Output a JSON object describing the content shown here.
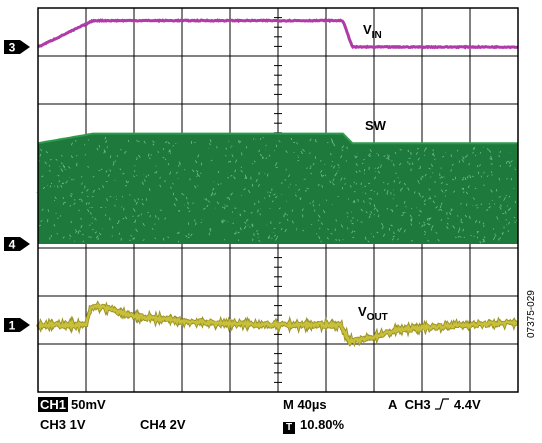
{
  "chart_data": {
    "type": "line",
    "title": "",
    "grid": true,
    "divisions": {
      "x": 10,
      "y": 8
    },
    "series": [
      {
        "name": "VIN",
        "label_main": "V",
        "label_sub": "IN",
        "channel": "3",
        "color": "#b03aa8",
        "unit": "div",
        "x_div": [
          0,
          1.15,
          6.35,
          6.55,
          10
        ],
        "y_div": [
          0,
          0.55,
          0.55,
          0,
          0
        ]
      },
      {
        "name": "SW",
        "channel": "4",
        "color": "#1e7a3c",
        "band_bottom_div": 0,
        "x_div": [
          0,
          1.15,
          6.35,
          6.55,
          10
        ],
        "band_top_div": [
          2.1,
          2.3,
          2.3,
          2.1,
          2.1
        ]
      },
      {
        "name": "VOUT",
        "label_main": "V",
        "label_sub": "OUT",
        "channel": "1",
        "color": "#c9c03a",
        "x_div": [
          0,
          1.0,
          1.1,
          1.25,
          2.0,
          3.0,
          4.0,
          5.0,
          6.3,
          6.5,
          6.8,
          7.5,
          8.5,
          10
        ],
        "y_div": [
          0,
          0,
          0.35,
          0.4,
          0.18,
          0.08,
          0.03,
          0,
          0,
          -0.35,
          -0.3,
          -0.1,
          -0.02,
          0.05
        ]
      }
    ]
  },
  "scope_settings": {
    "ch1": "CH1",
    "ch1_scale": "50mV",
    "ch3_scale": "CH3 1V",
    "ch4_scale": "CH4 2V",
    "timebase": "M 40µs",
    "trigger_prefix": "A",
    "trigger_channel": "CH3",
    "trigger_level": "4.4V",
    "trigger_icon": "rising-edge-icon",
    "trigger_marker": "T",
    "trigger_position": "10.80%"
  },
  "figure_id": "07375-029"
}
